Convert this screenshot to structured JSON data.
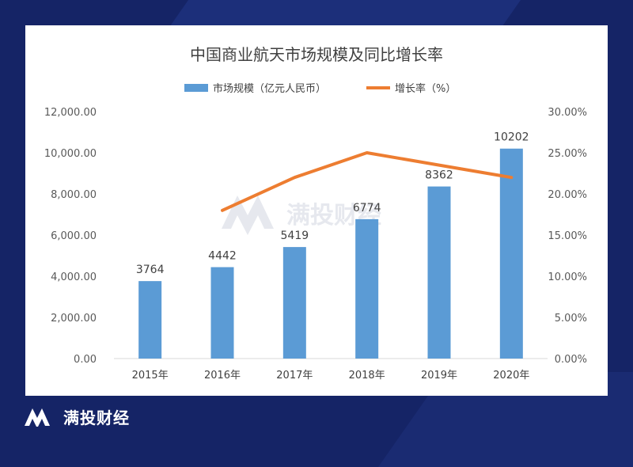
{
  "brand": {
    "name": "满投财经"
  },
  "chart_data": {
    "type": "bar+line",
    "title": "中国商业航天市场规模及同比增长率",
    "categories": [
      "2015年",
      "2016年",
      "2017年",
      "2018年",
      "2019年",
      "2020年"
    ],
    "series": [
      {
        "name": "市场规模（亿元人民币）",
        "type": "bar",
        "axis": "left",
        "color": "#5b9bd5",
        "values": [
          3764,
          4442,
          5419,
          6774,
          8362,
          10202
        ],
        "labels": [
          "3764",
          "4442",
          "5419",
          "6774",
          "8362",
          "10202"
        ]
      },
      {
        "name": "增长率（%）",
        "type": "line",
        "axis": "right",
        "color": "#ed7d31",
        "values": [
          null,
          18.0,
          22.0,
          25.0,
          23.5,
          22.0
        ]
      }
    ],
    "y_left": {
      "ylim": [
        0,
        12000
      ],
      "ticks": [
        "0.00",
        "2,000.00",
        "4,000.00",
        "6,000.00",
        "8,000.00",
        "10,000.00",
        "12,000.00"
      ]
    },
    "y_right": {
      "ylim": [
        0,
        30
      ],
      "ticks": [
        "0.00%",
        "5.00%",
        "10.00%",
        "15.00%",
        "20.00%",
        "25.00%",
        "30.00%"
      ]
    },
    "legend_position": "top-center",
    "grid": false
  }
}
